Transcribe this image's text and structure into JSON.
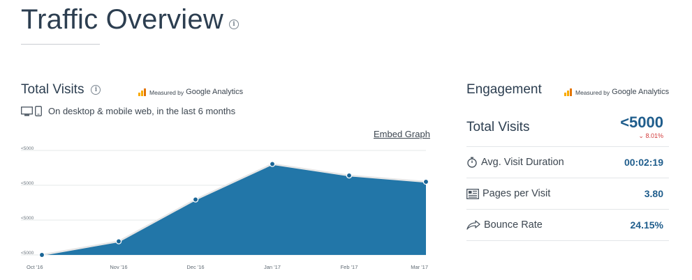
{
  "page": {
    "title": "Traffic Overview"
  },
  "total_visits": {
    "title": "Total Visits",
    "measured_by_small": "Measured by",
    "measured_by_brand": "Google Analytics",
    "device_text": "On desktop & mobile web, in the last 6 months",
    "embed_label": "Embed Graph"
  },
  "chart_data": {
    "type": "area",
    "categories": [
      "Oct '16",
      "Nov '16",
      "Dec '16",
      "Jan '17",
      "Feb '17",
      "Mar '17"
    ],
    "values": [
      0,
      0.13,
      0.53,
      0.87,
      0.76,
      0.7
    ],
    "value_scale": "relative (0 = baseline, 1 = top gridline); exact values hidden (<5000)",
    "y_tick_labels": [
      "<5000",
      "<5000",
      "<5000",
      "<5000"
    ],
    "grid": true,
    "colors": {
      "fill": "#2276a8",
      "line": "#e6e6e6",
      "point": "#1a6596"
    }
  },
  "engagement": {
    "title": "Engagement",
    "measured_by_small": "Measured by",
    "measured_by_brand": "Google Analytics",
    "total_visits_label": "Total Visits",
    "total_visits_value": "<5000",
    "total_visits_change": "8.01%",
    "total_visits_change_direction": "down",
    "rows": [
      {
        "label": "Avg. Visit Duration",
        "value": "00:02:19",
        "icon": "stopwatch-icon"
      },
      {
        "label": "Pages per Visit",
        "value": "3.80",
        "icon": "pages-icon"
      },
      {
        "label": "Bounce Rate",
        "value": "24.15%",
        "icon": "bounce-arrow-icon"
      }
    ]
  }
}
